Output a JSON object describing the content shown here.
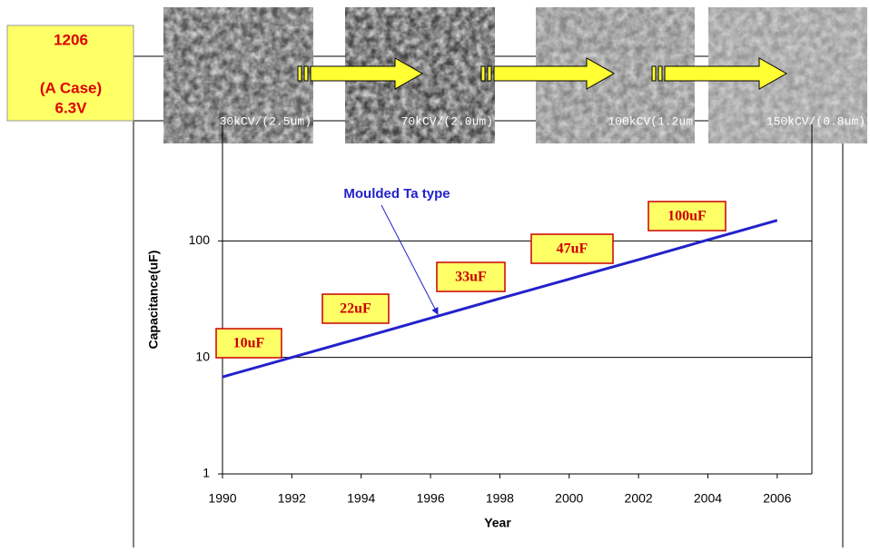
{
  "header": {
    "case_lines": [
      "1206",
      "(A Case)",
      "6.3V"
    ],
    "images": [
      {
        "label": "30kCV/(2.5um)"
      },
      {
        "label": "70kCV/(2.0um)"
      },
      {
        "label": "100kCV(1.2um"
      },
      {
        "label": "150kCV/(0.8um)"
      }
    ]
  },
  "chart_data": {
    "type": "line",
    "x": [
      1990,
      1992,
      1994,
      1996,
      1998,
      2000,
      2002,
      2004,
      2006
    ],
    "series": [
      {
        "name": "Moulded Ta type",
        "color": "#2222cc",
        "values": [
          6.8,
          10,
          14.7,
          21.7,
          32,
          47,
          69,
          102,
          150
        ]
      }
    ],
    "xlim": [
      1990,
      2007
    ],
    "xticks": [
      1990,
      1992,
      1994,
      1996,
      1998,
      2000,
      2002,
      2004,
      2006
    ],
    "ylim": [
      1,
      1000
    ],
    "yticks": [
      1,
      10,
      100
    ],
    "log_y": true,
    "grid": true,
    "xlabel": "Year",
    "ylabel": "Capacitance(uF)",
    "annotations": [
      "10uF",
      "22uF",
      "33uF",
      "47uF",
      "100uF"
    ]
  }
}
